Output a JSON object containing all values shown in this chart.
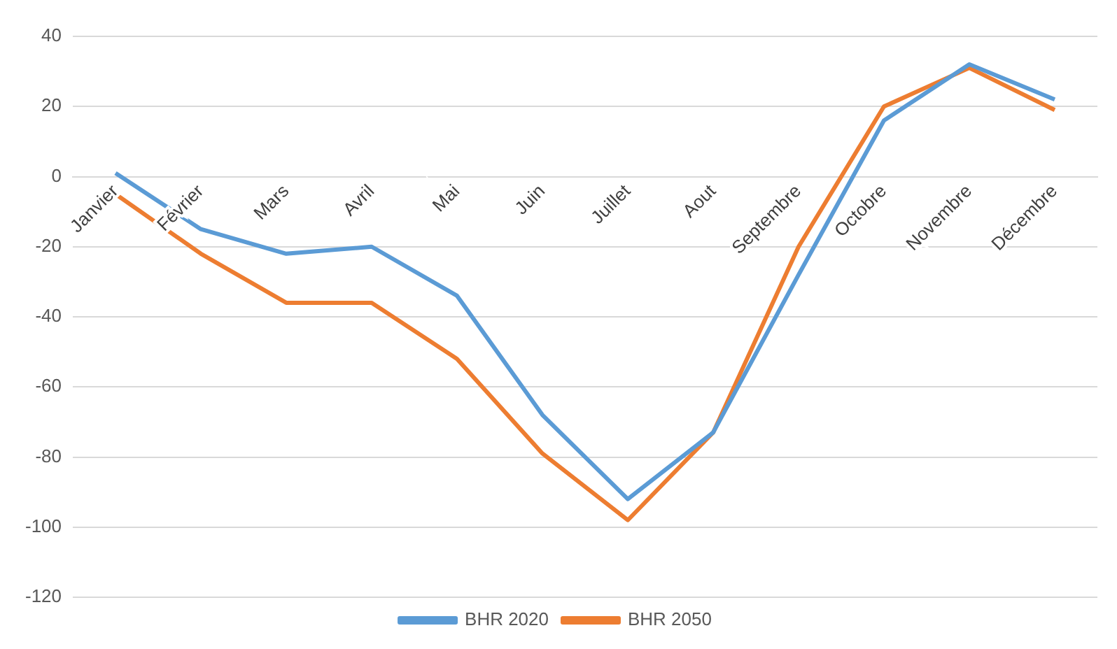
{
  "chart_data": {
    "type": "line",
    "categories": [
      "Janvier",
      "Février",
      "Mars",
      "Avril",
      "Mai",
      "Juin",
      "Juillet",
      "Aout",
      "Septembre",
      "Octobre",
      "Novembre",
      "Décembre"
    ],
    "series": [
      {
        "name": "BHR 2020",
        "color": "#5b9bd5",
        "values": [
          1,
          -15,
          -22,
          -20,
          -34,
          -68,
          -92,
          -73,
          -28,
          16,
          32,
          22
        ]
      },
      {
        "name": "BHR 2050",
        "color": "#ed7d31",
        "values": [
          -5,
          -22,
          -36,
          -36,
          -52,
          -79,
          -98,
          -73,
          -20,
          20,
          31,
          19
        ]
      }
    ],
    "ylim": [
      -120,
      40
    ],
    "yticks": [
      -120,
      -100,
      -80,
      -60,
      -40,
      -20,
      0,
      20,
      40
    ],
    "grid": "y",
    "legend": "bottom",
    "marker": "none",
    "line_style": "solid"
  }
}
